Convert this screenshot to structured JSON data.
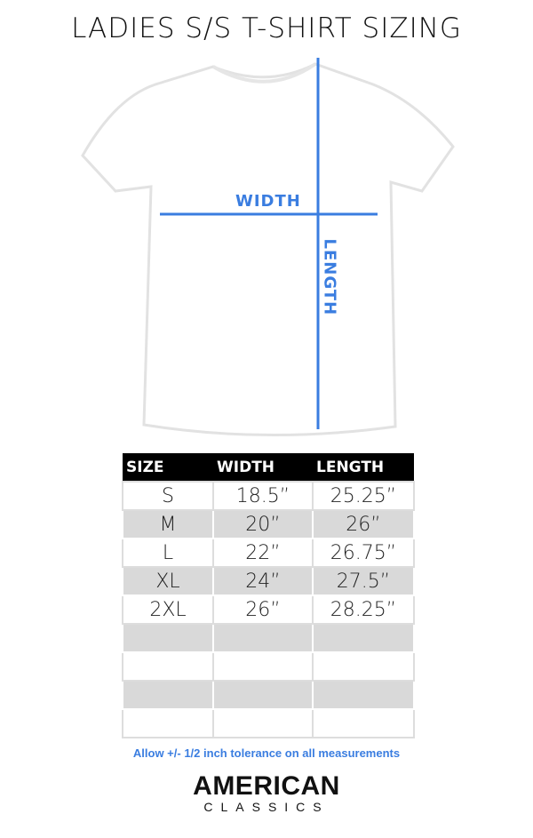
{
  "title": "LADIES S/S T-SHIRT SIZING",
  "labels": {
    "width": "WIDTH",
    "length": "LENGTH"
  },
  "accent": "#3a7de0",
  "table": {
    "headers": [
      "SIZE",
      "WIDTH",
      "LENGTH"
    ],
    "rows": [
      [
        "S",
        "18.5”",
        "25.25”"
      ],
      [
        "M",
        "20”",
        "26”"
      ],
      [
        "L",
        "22”",
        "26.75”"
      ],
      [
        "XL",
        "24”",
        "27.5”"
      ],
      [
        "2XL",
        "26”",
        "28.25”"
      ],
      [
        "",
        "",
        ""
      ],
      [
        "",
        "",
        ""
      ],
      [
        "",
        "",
        ""
      ],
      [
        "",
        "",
        ""
      ]
    ]
  },
  "note": "Allow +/- 1/2 inch tolerance on all measurements",
  "logo": {
    "line1": "AMERICAN",
    "line2": "CLASSICS"
  }
}
